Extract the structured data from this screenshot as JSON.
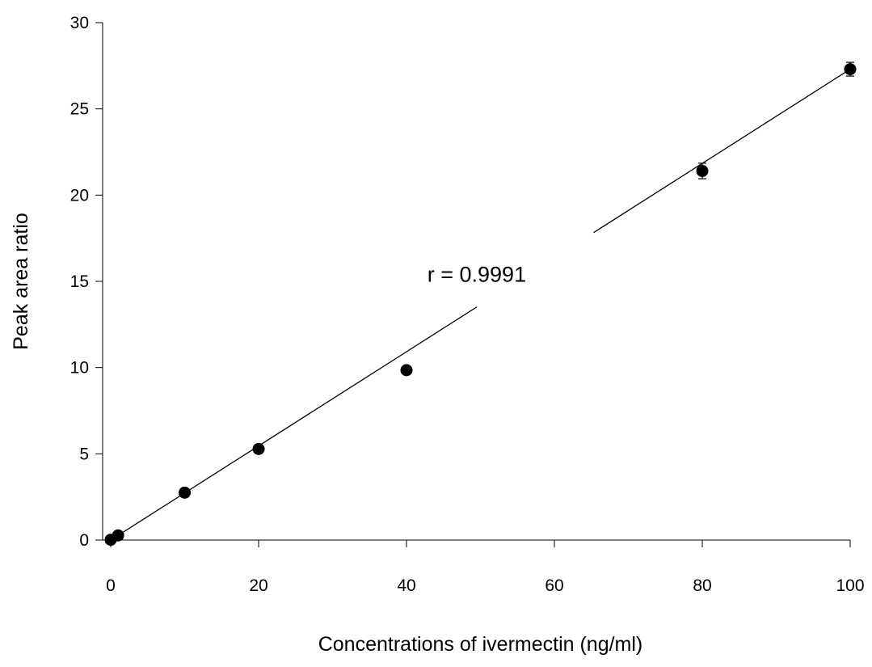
{
  "chart_data": {
    "type": "scatter",
    "title": "",
    "xlabel": "Concentrations of ivermectin (ng/ml)",
    "ylabel": "Peak area ratio",
    "xlim": [
      0,
      100
    ],
    "ylim": [
      0,
      30
    ],
    "x_ticks": [
      0,
      20,
      40,
      60,
      80,
      100
    ],
    "y_ticks": [
      0,
      5,
      10,
      15,
      20,
      25,
      30
    ],
    "grid": false,
    "legend": "none",
    "series": [
      {
        "points": [
          {
            "x": 0,
            "y": 0.02,
            "err": 0
          },
          {
            "x": 1,
            "y": 0.27,
            "err": 0
          },
          {
            "x": 10,
            "y": 2.75,
            "err": 0
          },
          {
            "x": 20,
            "y": 5.28,
            "err": 0.25
          },
          {
            "x": 40,
            "y": 9.85,
            "err": 0
          },
          {
            "x": 80,
            "y": 21.4,
            "err": 0.45
          },
          {
            "x": 100,
            "y": 27.3,
            "err": 0.4
          }
        ],
        "marker_color": "#000000"
      }
    ],
    "fit_line": {
      "x_start": 0,
      "y_start": 0,
      "x_end": 100,
      "y_end": 27.3,
      "segments_x": [
        [
          0,
          49.5
        ],
        [
          65.3,
          100
        ]
      ]
    },
    "annotations": [
      {
        "text": "r = 0.9991",
        "x": 49.5,
        "y": 15.4
      }
    ]
  }
}
